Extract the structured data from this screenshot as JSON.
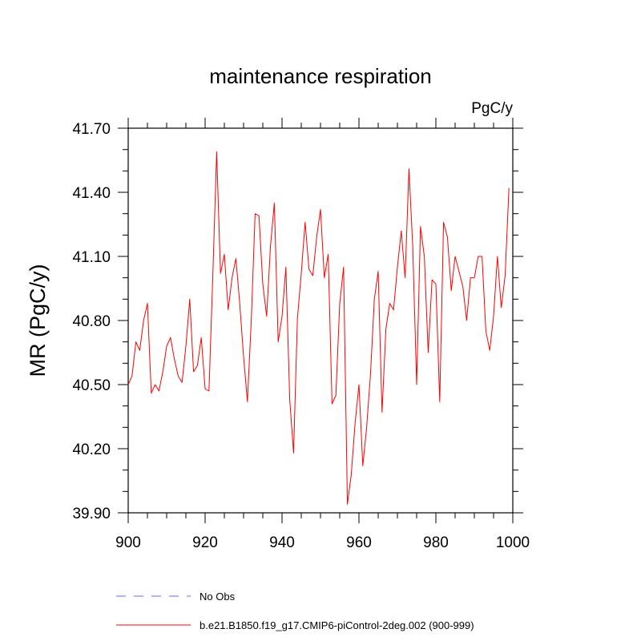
{
  "chart_data": {
    "type": "line",
    "title": "maintenance respiration",
    "units_label": "PgC/y",
    "ylabel": "MR  (PgC/y)",
    "xlabel": "",
    "xlim": [
      900,
      1000
    ],
    "ylim": [
      39.9,
      41.7
    ],
    "x_ticks": [
      900,
      920,
      940,
      960,
      980,
      1000
    ],
    "x_tick_labels": [
      "900",
      "920",
      "940",
      "960",
      "980",
      "1000"
    ],
    "y_ticks": [
      39.9,
      40.2,
      40.5,
      40.8,
      41.1,
      41.4,
      41.7
    ],
    "y_tick_labels": [
      "39.90",
      "40.20",
      "40.50",
      "40.80",
      "41.10",
      "41.40",
      "41.70"
    ],
    "legend_position": "bottom-left",
    "series": [
      {
        "name": "b.e21.B1850.f19_g17.CMIP6-piControl-2deg.002 (900-999)",
        "color": "#ff0000",
        "style": "solid",
        "x_start": 900,
        "values": [
          40.5,
          40.54,
          40.7,
          40.66,
          40.8,
          40.88,
          40.46,
          40.5,
          40.47,
          40.56,
          40.68,
          40.72,
          40.62,
          40.54,
          40.51,
          40.68,
          40.9,
          40.56,
          40.59,
          40.72,
          40.48,
          40.47,
          41.01,
          41.59,
          41.02,
          41.11,
          40.85,
          41.0,
          41.09,
          40.88,
          40.63,
          40.42,
          40.8,
          41.3,
          41.29,
          40.97,
          40.82,
          41.15,
          41.35,
          40.7,
          40.82,
          41.05,
          40.43,
          40.18,
          40.81,
          41.02,
          41.26,
          41.04,
          41.01,
          41.19,
          41.32,
          41.0,
          41.11,
          40.41,
          40.45,
          40.88,
          41.05,
          39.94,
          40.08,
          40.32,
          40.5,
          40.12,
          40.3,
          40.55,
          40.9,
          41.03,
          40.37,
          40.76,
          40.88,
          40.85,
          41.05,
          41.22,
          41.0,
          41.51,
          41.14,
          40.5,
          41.24,
          41.1,
          40.65,
          40.99,
          40.97,
          40.42,
          41.26,
          41.19,
          40.94,
          41.1,
          41.03,
          40.96,
          40.8,
          41.0,
          41.0,
          41.1,
          41.1,
          40.75,
          40.66,
          40.82,
          41.1,
          40.86,
          41.01,
          41.42
        ]
      },
      {
        "name": "No Obs",
        "color": "#6666ff",
        "style": "dashed",
        "values": []
      }
    ]
  }
}
